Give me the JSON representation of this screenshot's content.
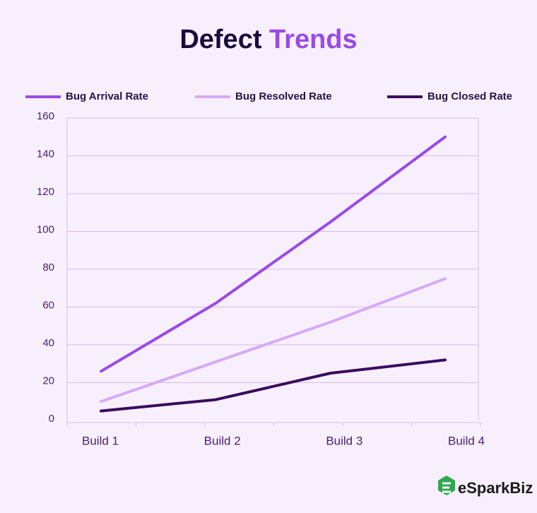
{
  "chart_data": {
    "type": "line",
    "title": [
      "Defect",
      "Trends"
    ],
    "categories": [
      "Build 1",
      "Build 2",
      "Build 3",
      "Build 4"
    ],
    "series": [
      {
        "name": "Bug Arrival Rate",
        "color": "#9a4ae6",
        "values": [
          26,
          62,
          105,
          150
        ]
      },
      {
        "name": "Bug Resolved Rate",
        "color": "#d6aaf6",
        "values": [
          10,
          31,
          52,
          75
        ]
      },
      {
        "name": "Bug Closed Rate",
        "color": "#3b0a5f",
        "values": [
          5,
          11,
          25,
          32
        ]
      }
    ],
    "ylim": [
      0,
      160
    ],
    "yticks": [
      0,
      20,
      40,
      60,
      80,
      100,
      120,
      140,
      160
    ],
    "grid": true,
    "legend": "top"
  },
  "brand": "eSparkBiz"
}
